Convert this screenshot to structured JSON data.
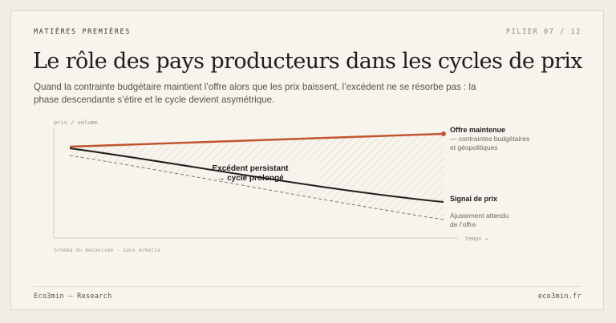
{
  "header": {
    "kicker": "MATIÈRES PREMIÈRES",
    "pager": "PILIER 07 / 12",
    "title": "Le rôle des pays producteurs dans les cycles de prix",
    "subtitle": "Quand la contrainte budgétaire maintient l’offre alors que les prix baissent, l’excédent ne se résorbe pas : la phase descendante s’étire et le cycle devient asymétrique."
  },
  "diagram": {
    "y_axis_label": "prix / volume",
    "x_axis_label": "temps →",
    "caption": "Schéma du mécanisme · sans échelle",
    "center_label_1": "Excédent persistant",
    "center_label_2": "→ cycle prolongé",
    "supply_label": "Offre maintenue",
    "supply_note_1": "— contraintes budgétaires",
    "supply_note_2": "et géopolitiques",
    "price_label": "Signal de prix",
    "expected_label_1": "Ajustement attendu",
    "expected_label_2": "de l’offre",
    "colors": {
      "supply": "#c0552f",
      "price": "#1f1d1a",
      "expected": "#77736b",
      "hatch": "#d9cfc1"
    }
  },
  "footer": {
    "left": "Eco3min — Research",
    "right": "eco3min.fr"
  }
}
